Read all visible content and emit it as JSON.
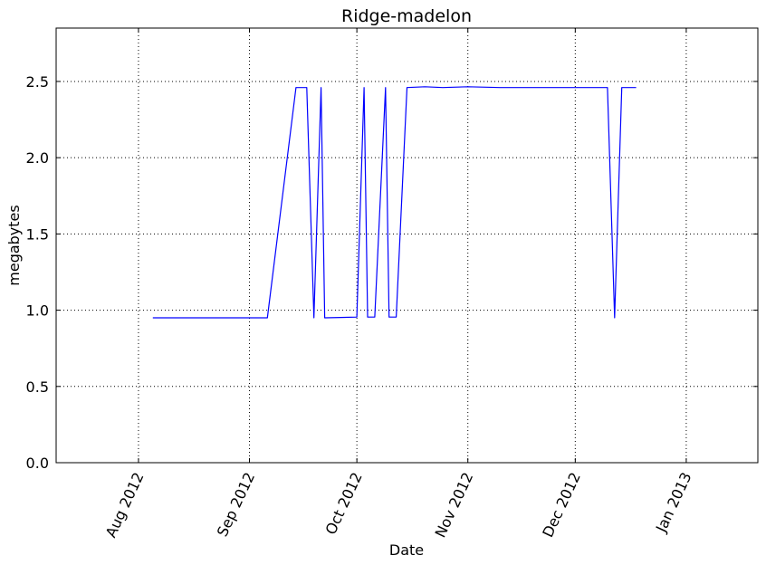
{
  "chart_data": {
    "type": "line",
    "title": "Ridge-madelon",
    "xlabel": "Date",
    "ylabel": "megabytes",
    "xlim": [
      "2012-07-09",
      "2013-01-21"
    ],
    "ylim": [
      0.0,
      2.85
    ],
    "grid": true,
    "color": "#0000ff",
    "x_ticks": [
      "2012-08-01",
      "2012-09-01",
      "2012-10-01",
      "2012-11-01",
      "2012-12-01",
      "2013-01-01"
    ],
    "x_tick_labels": [
      "Aug 2012",
      "Sep 2012",
      "Oct 2012",
      "Nov 2012",
      "Dec 2012",
      "Jan 2013"
    ],
    "y_ticks": [
      0.0,
      0.5,
      1.0,
      1.5,
      2.0,
      2.5
    ],
    "y_tick_labels": [
      "0.0",
      "0.5",
      "1.0",
      "1.5",
      "2.0",
      "2.5"
    ],
    "series": [
      {
        "x": [
          "2012-08-05",
          "2012-09-06",
          "2012-09-14",
          "2012-09-17",
          "2012-09-19",
          "2012-09-21",
          "2012-09-22",
          "2012-10-01",
          "2012-10-03",
          "2012-10-04",
          "2012-10-06",
          "2012-10-09",
          "2012-10-10",
          "2012-10-12",
          "2012-10-15",
          "2012-10-20",
          "2012-10-25",
          "2012-11-01",
          "2012-11-10",
          "2012-11-20",
          "2012-11-25",
          "2012-12-01",
          "2012-12-10",
          "2012-12-12",
          "2012-12-14",
          "2012-12-16",
          "2012-12-18"
        ],
        "y": [
          0.95,
          0.95,
          2.46,
          2.46,
          0.95,
          2.46,
          0.95,
          0.955,
          2.46,
          0.955,
          0.955,
          2.46,
          0.955,
          0.955,
          2.46,
          2.465,
          2.46,
          2.465,
          2.46,
          2.46,
          2.46,
          2.46,
          2.46,
          0.95,
          2.46,
          2.46,
          2.46
        ]
      }
    ]
  }
}
